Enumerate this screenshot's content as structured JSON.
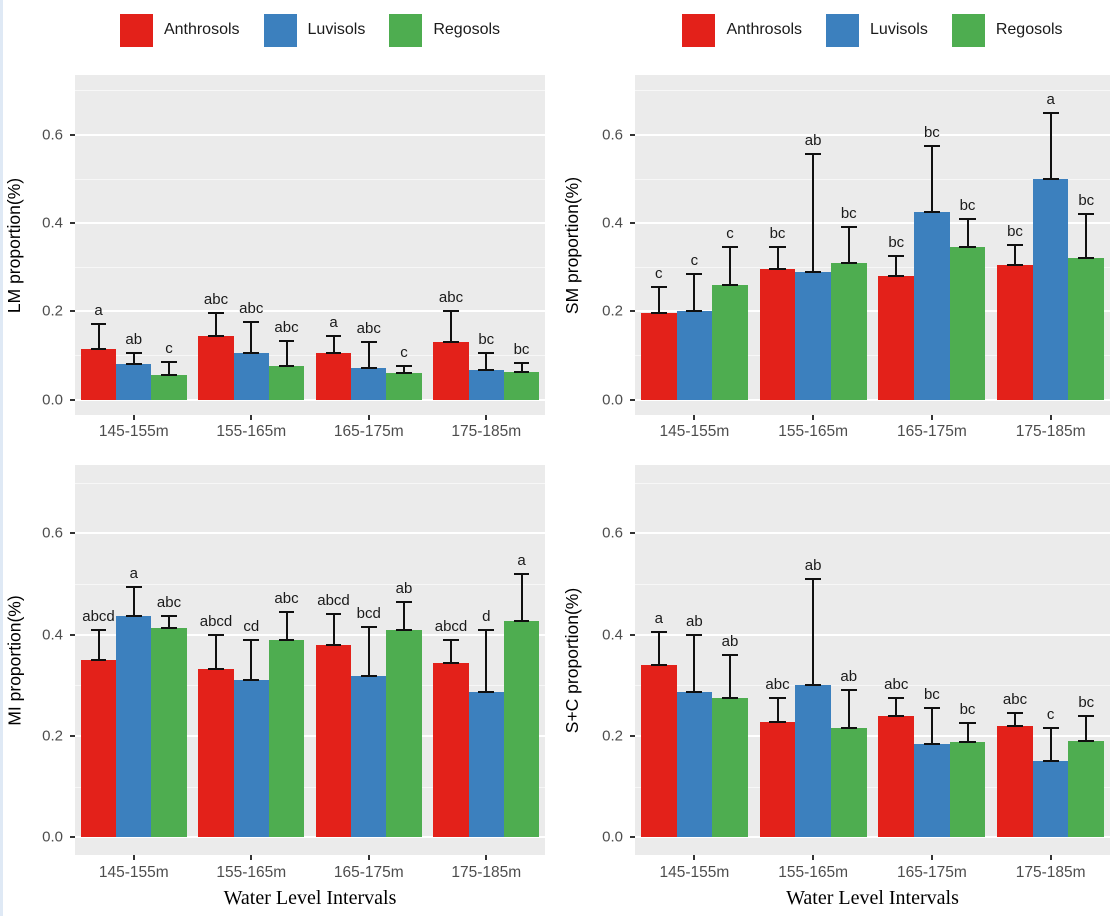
{
  "figure": {
    "xlabel": "Water Level Intervals",
    "categories": [
      "145-155m",
      "155-165m",
      "165-175m",
      "175-185m"
    ],
    "legend": [
      "Anthrosols",
      "Luvisols",
      "Regosols"
    ],
    "colors": {
      "anthrosols": "#e3211a",
      "luvisols": "#3c80be",
      "regosols": "#4ead50",
      "panel_background": "#ebebeb",
      "gridline": "#ffffff",
      "tick_text": "#4d4d4d",
      "error_bar": "#101010"
    },
    "yticks": [
      "0.0",
      "0.2",
      "0.4",
      "0.6"
    ]
  },
  "chart_data": [
    {
      "type": "bar",
      "position": "top-left",
      "ylabel": "LM proportion(%)",
      "ylim": [
        0,
        0.7
      ],
      "grid": true,
      "legend_position": "top",
      "categories": [
        "145-155m",
        "155-165m",
        "165-175m",
        "175-185m"
      ],
      "series": [
        {
          "name": "Anthrosols",
          "values": [
            0.115,
            0.143,
            0.105,
            0.13
          ],
          "error_upper": [
            0.17,
            0.195,
            0.145,
            0.2
          ],
          "sig_letters": [
            "a",
            "abc",
            "a",
            "abc"
          ]
        },
        {
          "name": "Luvisols",
          "values": [
            0.08,
            0.105,
            0.072,
            0.067
          ],
          "error_upper": [
            0.105,
            0.175,
            0.13,
            0.105
          ],
          "sig_letters": [
            "ab",
            "abc",
            "abc",
            "bc"
          ]
        },
        {
          "name": "Regosols",
          "values": [
            0.055,
            0.077,
            0.06,
            0.062
          ],
          "error_upper": [
            0.085,
            0.132,
            0.075,
            0.082
          ],
          "sig_letters": [
            "c",
            "abc",
            "c",
            "bc"
          ]
        }
      ]
    },
    {
      "type": "bar",
      "position": "top-right",
      "ylabel": "SM proportion(%)",
      "ylim": [
        0,
        0.7
      ],
      "grid": true,
      "legend_position": "top",
      "categories": [
        "145-155m",
        "155-165m",
        "165-175m",
        "175-185m"
      ],
      "series": [
        {
          "name": "Anthrosols",
          "values": [
            0.195,
            0.295,
            0.28,
            0.305
          ],
          "error_upper": [
            0.255,
            0.345,
            0.325,
            0.35
          ],
          "sig_letters": [
            "c",
            "bc",
            "bc",
            "bc"
          ]
        },
        {
          "name": "Luvisols",
          "values": [
            0.2,
            0.29,
            0.425,
            0.5
          ],
          "error_upper": [
            0.285,
            0.555,
            0.575,
            0.65
          ],
          "sig_letters": [
            "c",
            "ab",
            "bc",
            "a"
          ]
        },
        {
          "name": "Regosols",
          "values": [
            0.26,
            0.31,
            0.345,
            0.32
          ],
          "error_upper": [
            0.345,
            0.39,
            0.41,
            0.42
          ],
          "sig_letters": [
            "c",
            "bc",
            "bc",
            "bc"
          ]
        }
      ]
    },
    {
      "type": "bar",
      "position": "bottom-left",
      "ylabel": "MI proportion(%)",
      "ylim": [
        0,
        0.7
      ],
      "grid": true,
      "legend_position": "top",
      "categories": [
        "145-155m",
        "155-165m",
        "165-175m",
        "175-185m"
      ],
      "series": [
        {
          "name": "Anthrosols",
          "values": [
            0.35,
            0.333,
            0.38,
            0.345
          ],
          "error_upper": [
            0.41,
            0.4,
            0.44,
            0.39
          ],
          "sig_letters": [
            "abcd",
            "abcd",
            "abcd",
            "abcd"
          ]
        },
        {
          "name": "Luvisols",
          "values": [
            0.437,
            0.31,
            0.318,
            0.287
          ],
          "error_upper": [
            0.495,
            0.39,
            0.415,
            0.41
          ],
          "sig_letters": [
            "a",
            "cd",
            "bcd",
            "d"
          ]
        },
        {
          "name": "Regosols",
          "values": [
            0.413,
            0.39,
            0.41,
            0.428
          ],
          "error_upper": [
            0.437,
            0.445,
            0.465,
            0.52
          ],
          "sig_letters": [
            "abc",
            "abc",
            "ab",
            "a"
          ]
        }
      ]
    },
    {
      "type": "bar",
      "position": "bottom-right",
      "ylabel": "S+C proportion(%)",
      "ylim": [
        0,
        0.7
      ],
      "grid": true,
      "legend_position": "top",
      "categories": [
        "145-155m",
        "155-165m",
        "165-175m",
        "175-185m"
      ],
      "series": [
        {
          "name": "Anthrosols",
          "values": [
            0.34,
            0.227,
            0.24,
            0.22
          ],
          "error_upper": [
            0.405,
            0.275,
            0.275,
            0.245
          ],
          "sig_letters": [
            "a",
            "abc",
            "abc",
            "abc"
          ]
        },
        {
          "name": "Luvisols",
          "values": [
            0.287,
            0.3,
            0.185,
            0.15
          ],
          "error_upper": [
            0.4,
            0.51,
            0.255,
            0.215
          ],
          "sig_letters": [
            "ab",
            "ab",
            "bc",
            "c"
          ]
        },
        {
          "name": "Regosols",
          "values": [
            0.275,
            0.215,
            0.188,
            0.19
          ],
          "error_upper": [
            0.36,
            0.29,
            0.225,
            0.24
          ],
          "sig_letters": [
            "ab",
            "ab",
            "bc",
            "bc"
          ]
        }
      ]
    }
  ]
}
